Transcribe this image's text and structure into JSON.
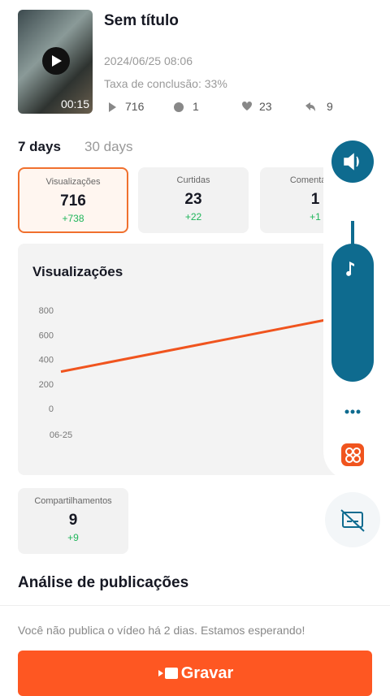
{
  "video": {
    "title": "Sem título",
    "duration": "00:15",
    "date": "2024/06/25 08:06",
    "completion": "Taxa de conclusão: 33%",
    "stats": {
      "plays": "716",
      "comments": "1",
      "likes": "23",
      "shares": "9"
    }
  },
  "tabs": [
    "7 days",
    "30 days"
  ],
  "cards": [
    {
      "label": "Visualizações",
      "value": "716",
      "delta": "+738"
    },
    {
      "label": "Curtidas",
      "value": "23",
      "delta": "+22"
    },
    {
      "label": "Comentários",
      "value": "1",
      "delta": "+1"
    },
    {
      "label": "Compartilhamentos",
      "value": "9",
      "delta": "+9"
    }
  ],
  "chart": {
    "type": "line",
    "title": "Visualizações",
    "categories": [
      "06-25",
      null
    ],
    "values": [
      300,
      720
    ],
    "color": "#f0541e",
    "ylim": [
      0,
      800
    ],
    "yticks": [
      0,
      200,
      400,
      600,
      800
    ]
  },
  "section_title": "Análise de publicações",
  "message": "Você não publica o vídeo há 2 dias. Estamos esperando!",
  "button": "Gravar"
}
